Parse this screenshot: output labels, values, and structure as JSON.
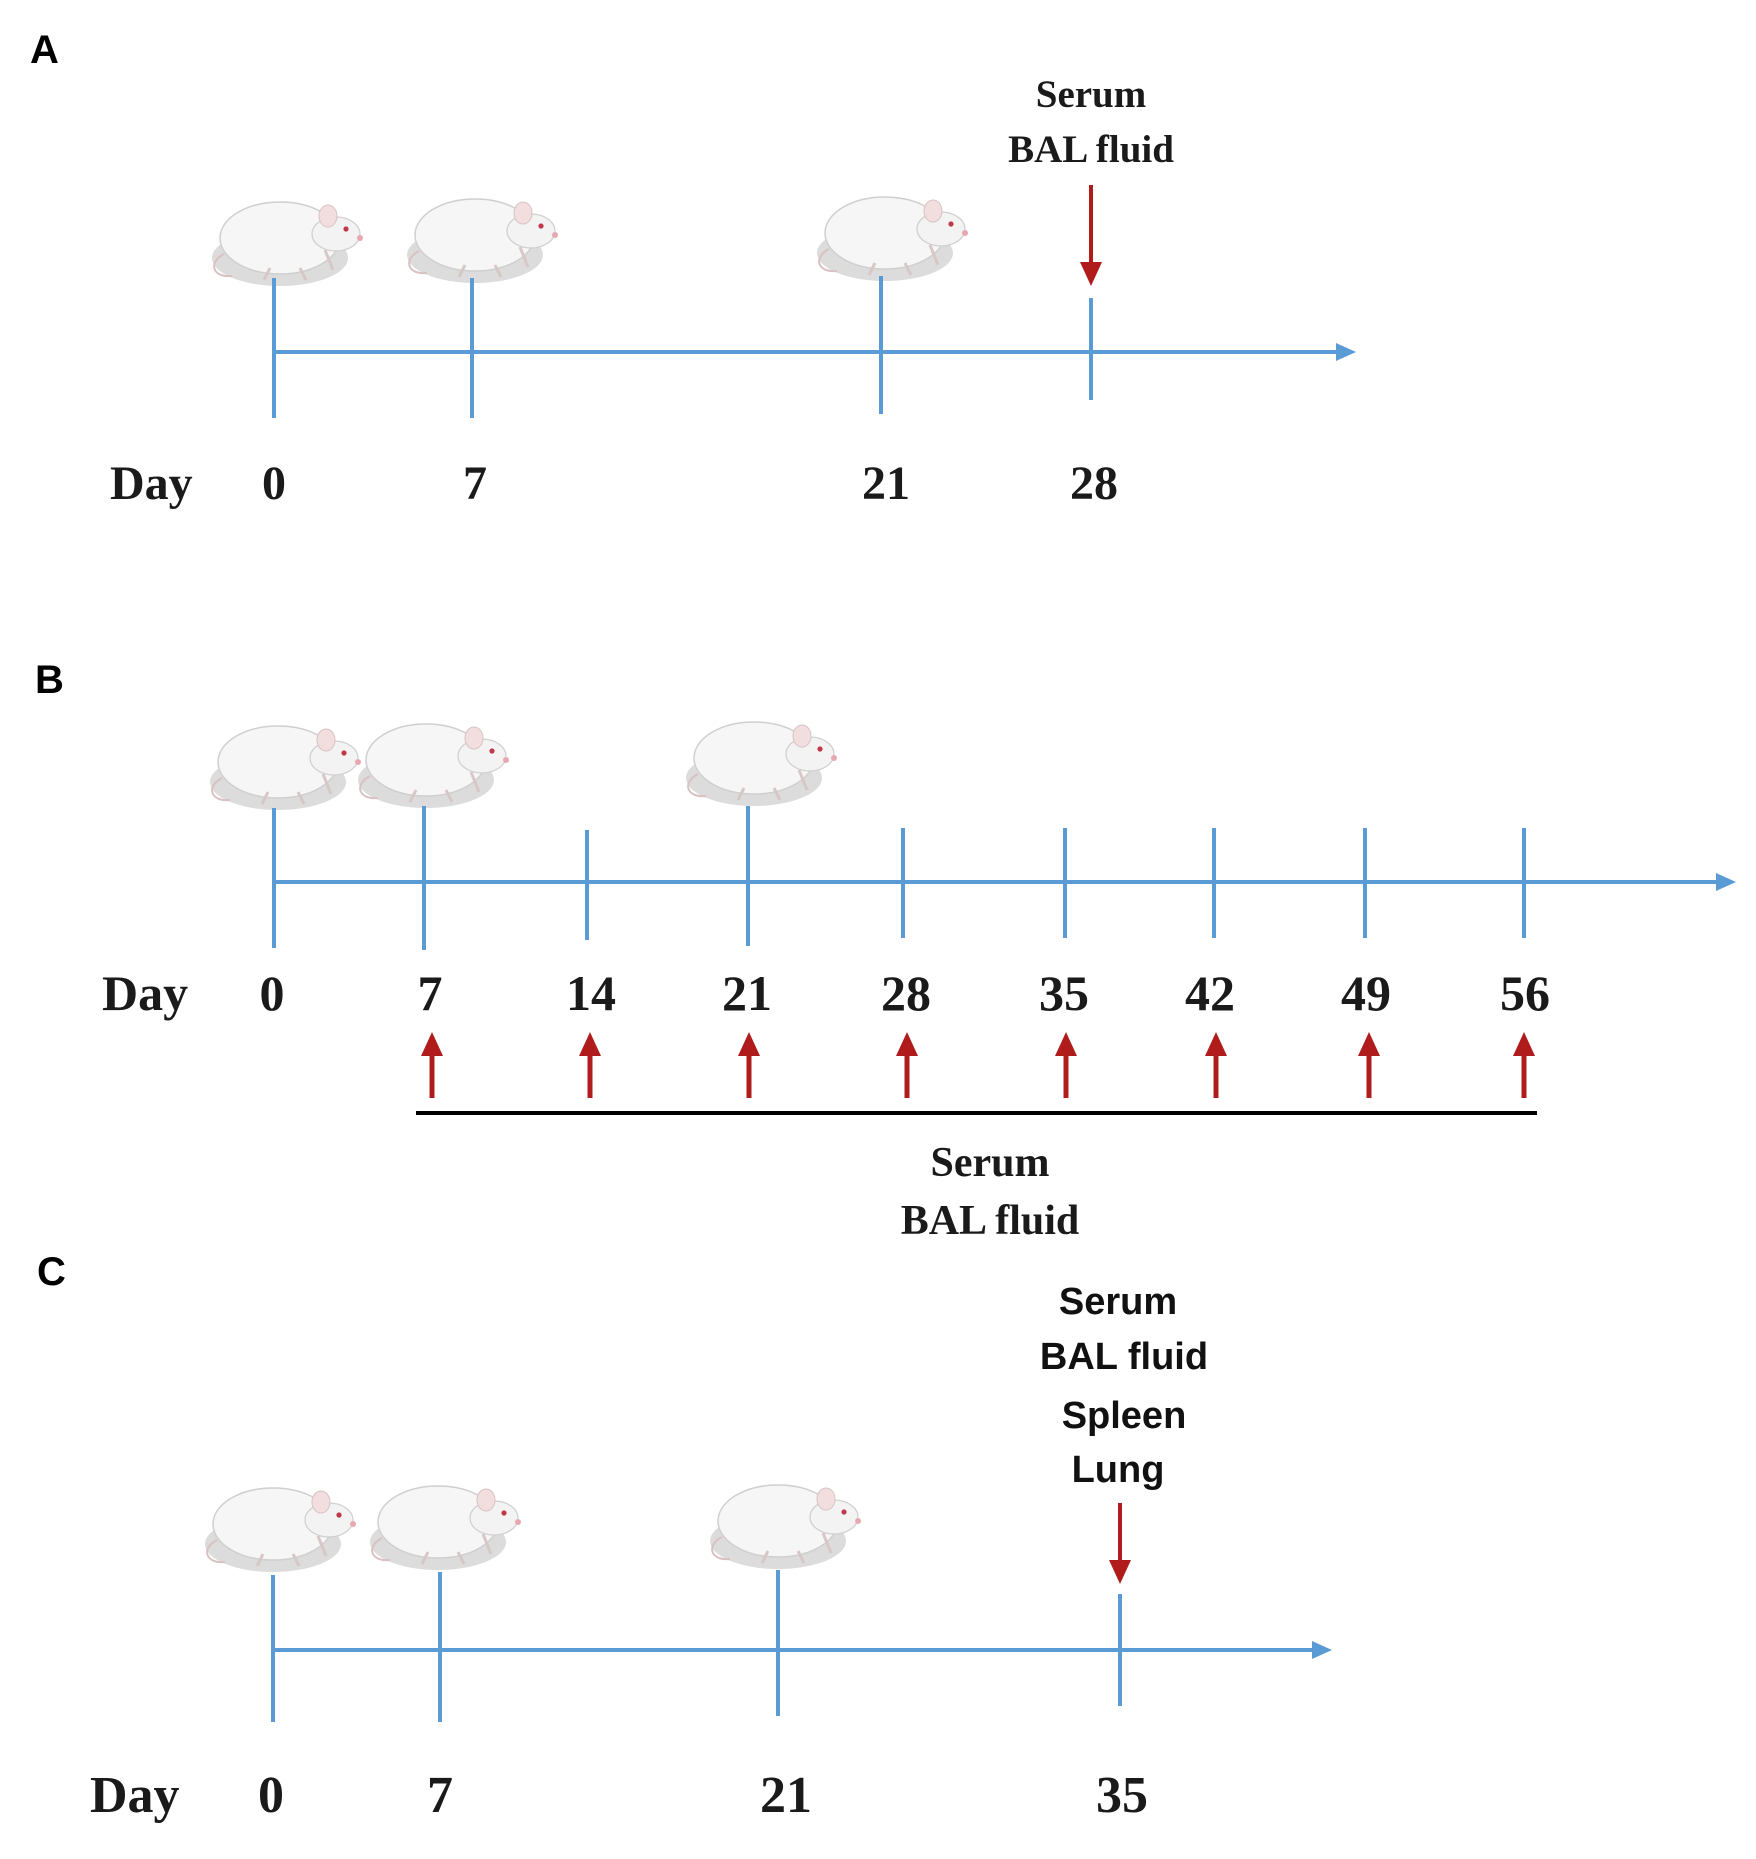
{
  "colors": {
    "timeline": "#5b9bd5",
    "arrow": "#b01c1c",
    "bracket": "#000000"
  },
  "panels": [
    {
      "id": "A",
      "letter": "A",
      "day_label": "Day",
      "days": [
        "0",
        "7",
        "21",
        "28"
      ],
      "mouse_days": [
        "0",
        "7",
        "21"
      ],
      "collection_day": "28",
      "collection_labels": [
        "Serum",
        "BAL fluid"
      ]
    },
    {
      "id": "B",
      "letter": "B",
      "day_label": "Day",
      "days": [
        "0",
        "7",
        "14",
        "21",
        "28",
        "35",
        "42",
        "49",
        "56"
      ],
      "mouse_days": [
        "0",
        "7",
        "21"
      ],
      "sampling_days": [
        "7",
        "14",
        "21",
        "28",
        "35",
        "42",
        "49",
        "56"
      ],
      "collection_labels": [
        "Serum",
        "BAL fluid"
      ]
    },
    {
      "id": "C",
      "letter": "C",
      "day_label": "Day",
      "days": [
        "0",
        "7",
        "21",
        "35"
      ],
      "mouse_days": [
        "0",
        "7",
        "21"
      ],
      "collection_day": "35",
      "collection_labels": [
        "Serum",
        "BAL fluid",
        "Spleen",
        "Lung"
      ]
    }
  ]
}
